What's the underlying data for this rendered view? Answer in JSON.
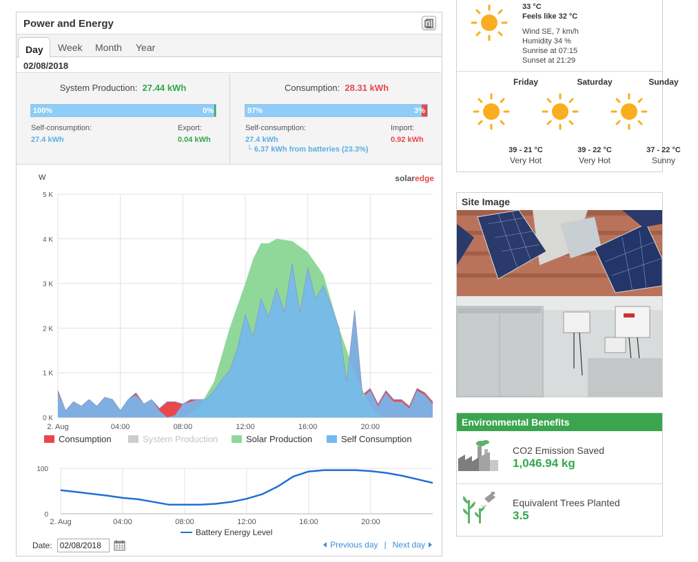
{
  "panel": {
    "title": "Power and Energy",
    "export_icon": "export-document-icon",
    "tabs": [
      {
        "label": "Day",
        "active": true
      },
      {
        "label": "Week",
        "active": false
      },
      {
        "label": "Month",
        "active": false
      },
      {
        "label": "Year",
        "active": false
      }
    ],
    "selected_date": "02/08/2018"
  },
  "production": {
    "label": "System Production:",
    "value": "27.44 kWh",
    "bar_left_label": "100%",
    "bar_right_label": "0%",
    "self_fraction": 1.0,
    "self_label": "Self-consumption:",
    "self_value": "27.4 kWh",
    "export_label": "Export:",
    "export_value": "0.04 kWh"
  },
  "consumption": {
    "label": "Consumption:",
    "value": "28.31 kWh",
    "bar_left_label": "97%",
    "bar_right_label": "3%",
    "self_fraction": 0.97,
    "self_label": "Self-consumption:",
    "self_value": "27.4 kWh",
    "battery_note": "└ 6.37 kWh from batteries (23.3%)",
    "import_label": "Import:",
    "import_value": "0.92 kWh"
  },
  "chart_data": [
    {
      "type": "area",
      "ylabel": "W",
      "brand_text": "solaredge",
      "ylim": [
        0,
        5000
      ],
      "yticks": [
        "0 K",
        "1 K",
        "2 K",
        "3 K",
        "4 K",
        "5 K"
      ],
      "xlim": [
        0,
        24
      ],
      "xticks": [
        {
          "x": 0,
          "label": "2. Aug"
        },
        {
          "x": 4,
          "label": "04:00"
        },
        {
          "x": 8,
          "label": "08:00"
        },
        {
          "x": 12,
          "label": "12:00"
        },
        {
          "x": 16,
          "label": "16:00"
        },
        {
          "x": 20,
          "label": "20:00"
        }
      ],
      "grid": true,
      "legend": "bottom",
      "series": [
        {
          "name": "Consumption",
          "color": "#e8474c",
          "points": [
            [
              0,
              600
            ],
            [
              0.5,
              150
            ],
            [
              1,
              350
            ],
            [
              1.5,
              250
            ],
            [
              2,
              400
            ],
            [
              2.5,
              250
            ],
            [
              3,
              450
            ],
            [
              3.5,
              400
            ],
            [
              4,
              150
            ],
            [
              4.5,
              400
            ],
            [
              5,
              550
            ],
            [
              5.5,
              300
            ],
            [
              6,
              400
            ],
            [
              6.5,
              200
            ],
            [
              7,
              350
            ],
            [
              7.5,
              350
            ],
            [
              8,
              300
            ],
            [
              8.5,
              400
            ],
            [
              9,
              400
            ],
            [
              9.5,
              400
            ],
            [
              10,
              600
            ],
            [
              10.5,
              850
            ],
            [
              11,
              1050
            ],
            [
              11.5,
              1550
            ],
            [
              12,
              2300
            ],
            [
              12.5,
              1800
            ],
            [
              13,
              2650
            ],
            [
              13.5,
              2250
            ],
            [
              14,
              2900
            ],
            [
              14.5,
              2350
            ],
            [
              15,
              3450
            ],
            [
              15.5,
              2350
            ],
            [
              16,
              3350
            ],
            [
              16.5,
              2650
            ],
            [
              17,
              2950
            ],
            [
              17.5,
              2500
            ],
            [
              18,
              2000
            ],
            [
              18.5,
              800
            ],
            [
              19,
              2400
            ],
            [
              19.5,
              500
            ],
            [
              20,
              650
            ],
            [
              20.5,
              300
            ],
            [
              21,
              600
            ],
            [
              21.5,
              400
            ],
            [
              22,
              400
            ],
            [
              22.5,
              250
            ],
            [
              23,
              650
            ],
            [
              23.5,
              550
            ],
            [
              24,
              350
            ]
          ]
        },
        {
          "name": "System Production",
          "color": "#cccccc",
          "points": []
        },
        {
          "name": "Solar Production",
          "color": "#8fd89a",
          "points": [
            [
              0,
              0
            ],
            [
              8,
              0
            ],
            [
              9,
              200
            ],
            [
              10,
              800
            ],
            [
              11,
              2000
            ],
            [
              12,
              3000
            ],
            [
              12.5,
              3550
            ],
            [
              13,
              3900
            ],
            [
              13.5,
              3900
            ],
            [
              14,
              4000
            ],
            [
              15,
              3950
            ],
            [
              16,
              3700
            ],
            [
              17,
              3200
            ],
            [
              18,
              2000
            ],
            [
              19,
              1000
            ],
            [
              20,
              250
            ],
            [
              20.5,
              50
            ],
            [
              21,
              0
            ],
            [
              24,
              0
            ]
          ]
        },
        {
          "name": "Self Consumption",
          "color": "#75b9ee",
          "points": [
            [
              0,
              550
            ],
            [
              0.5,
              150
            ],
            [
              1,
              350
            ],
            [
              1.5,
              250
            ],
            [
              2,
              400
            ],
            [
              2.5,
              250
            ],
            [
              3,
              450
            ],
            [
              3.5,
              400
            ],
            [
              4,
              150
            ],
            [
              4.5,
              400
            ],
            [
              5,
              500
            ],
            [
              5.5,
              300
            ],
            [
              6,
              400
            ],
            [
              6.5,
              150
            ],
            [
              7,
              0
            ],
            [
              7.5,
              50
            ],
            [
              8,
              300
            ],
            [
              8.5,
              350
            ],
            [
              9,
              400
            ],
            [
              9.5,
              400
            ],
            [
              10,
              600
            ],
            [
              10.5,
              850
            ],
            [
              11,
              1050
            ],
            [
              11.5,
              1550
            ],
            [
              12,
              2300
            ],
            [
              12.5,
              1800
            ],
            [
              13,
              2650
            ],
            [
              13.5,
              2250
            ],
            [
              14,
              2900
            ],
            [
              14.5,
              2350
            ],
            [
              15,
              3450
            ],
            [
              15.5,
              2350
            ],
            [
              16,
              3350
            ],
            [
              16.5,
              2650
            ],
            [
              17,
              2950
            ],
            [
              17.5,
              2500
            ],
            [
              18,
              2000
            ],
            [
              18.5,
              750
            ],
            [
              19,
              2350
            ],
            [
              19.5,
              450
            ],
            [
              20,
              600
            ],
            [
              20.5,
              250
            ],
            [
              21,
              550
            ],
            [
              21.5,
              350
            ],
            [
              22,
              350
            ],
            [
              22.5,
              200
            ],
            [
              23,
              600
            ],
            [
              23.5,
              500
            ],
            [
              24,
              300
            ]
          ]
        }
      ]
    },
    {
      "type": "line",
      "ylim": [
        0,
        100
      ],
      "yticks": [
        "0",
        "100"
      ],
      "xlim": [
        0,
        24
      ],
      "xticks": [
        {
          "x": 0,
          "label": "2. Aug"
        },
        {
          "x": 4,
          "label": "04:00"
        },
        {
          "x": 8,
          "label": "08:00"
        },
        {
          "x": 12,
          "label": "12:00"
        },
        {
          "x": 16,
          "label": "16:00"
        },
        {
          "x": 20,
          "label": "20:00"
        }
      ],
      "series": [
        {
          "name": "Battery Energy Level",
          "color": "#1e6fd6",
          "points": [
            [
              0,
              52
            ],
            [
              1,
              48
            ],
            [
              2,
              44
            ],
            [
              3,
              40
            ],
            [
              4,
              35
            ],
            [
              5,
              32
            ],
            [
              6,
              26
            ],
            [
              7,
              20
            ],
            [
              8,
              20
            ],
            [
              9,
              20
            ],
            [
              10,
              22
            ],
            [
              11,
              26
            ],
            [
              12,
              33
            ],
            [
              13,
              43
            ],
            [
              14,
              60
            ],
            [
              15,
              82
            ],
            [
              16,
              93
            ],
            [
              17,
              96
            ],
            [
              18,
              96
            ],
            [
              19,
              96
            ],
            [
              20,
              94
            ],
            [
              21,
              90
            ],
            [
              22,
              84
            ],
            [
              23,
              76
            ],
            [
              24,
              68
            ]
          ]
        }
      ]
    }
  ],
  "footer": {
    "date_label": "Date:",
    "date_value": "02/08/2018",
    "prev_label": "Previous day",
    "separator": "|",
    "next_label": "Next day"
  },
  "weather": {
    "temp": "33 °C",
    "feels_like": "Feels like 32 °C",
    "wind": "Wind SE, 7 km/h",
    "humidity": "Humidity 34 %",
    "sunrise": "Sunrise at 07:15",
    "sunset": "Sunset at 21:29",
    "icon": "sun-icon",
    "forecast": [
      {
        "day": "Friday",
        "temp": "39 - 21 °C",
        "desc": "Very Hot"
      },
      {
        "day": "Saturday",
        "temp": "39 - 22 °C",
        "desc": "Very Hot"
      },
      {
        "day": "Sunday",
        "temp": "37 - 22 °C",
        "desc": "Sunny"
      }
    ]
  },
  "site": {
    "title": "Site Image"
  },
  "environment": {
    "title": "Environmental Benefits",
    "co2_label": "CO2 Emission Saved",
    "co2_value": "1,046.94 kg",
    "trees_label": "Equivalent Trees Planted",
    "trees_value": "3.5"
  },
  "colors": {
    "accent_green": "#3aa54e",
    "link_blue": "#3a8ed6",
    "import_red": "#e7474d",
    "sun_yellow": "#f8ae1e"
  }
}
